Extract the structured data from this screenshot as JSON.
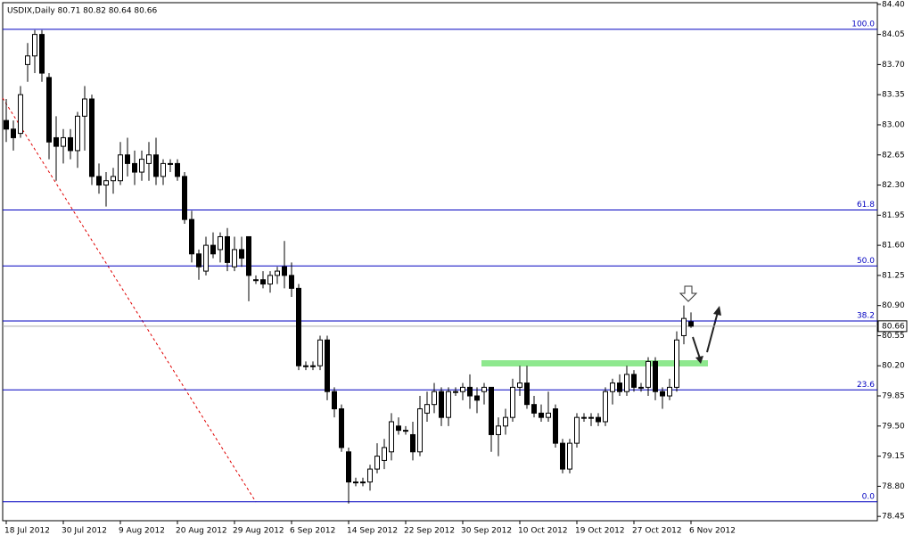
{
  "chart_data": {
    "type": "candlestick",
    "title": "USDIX,Daily  80.71 80.82 80.64 80.66",
    "categories": [
      "18 Jul 2012",
      null,
      null,
      null,
      null,
      null,
      null,
      null,
      "30 Jul 2012",
      null,
      null,
      null,
      null,
      null,
      null,
      null,
      "9 Aug 2012",
      null,
      null,
      null,
      null,
      null,
      null,
      null,
      "20 Aug 2012",
      null,
      null,
      null,
      null,
      null,
      null,
      null,
      "29 Aug 2012",
      null,
      null,
      null,
      null,
      null,
      null,
      null,
      "6 Sep 2012",
      null,
      null,
      null,
      null,
      null,
      null,
      null,
      "14 Sep 2012",
      null,
      null,
      null,
      null,
      null,
      null,
      null,
      "22 Sep 2012",
      null,
      null,
      null,
      null,
      null,
      null,
      null,
      "30 Sep 2012",
      null,
      null,
      null,
      null,
      null,
      null,
      null,
      "10 Oct 2012",
      null,
      null,
      null,
      null,
      null,
      null,
      null,
      "19 Oct 2012",
      null,
      null,
      null,
      null,
      null,
      null,
      null,
      "27 Oct 2012",
      null,
      null,
      null,
      null,
      null,
      null,
      null,
      "6 Nov 2012"
    ],
    "open": [
      83.05,
      82.95,
      82.9,
      83.7,
      83.8,
      84.05,
      83.55,
      82.85,
      82.75,
      82.85,
      82.7,
      83.1,
      83.3,
      82.4,
      82.3,
      82.35,
      82.35,
      82.65,
      82.55,
      82.45,
      82.55,
      82.65,
      82.4,
      82.55,
      82.55,
      82.4,
      81.9,
      81.5,
      81.3,
      81.6,
      81.55,
      81.7,
      81.35,
      81.55,
      81.7,
      81.2,
      81.2,
      81.15,
      81.25,
      81.35,
      81.25,
      81.1,
      80.2,
      80.2,
      80.2,
      80.5,
      79.9,
      79.7,
      79.2,
      78.85,
      78.85,
      78.85,
      79.0,
      79.1,
      79.2,
      79.5,
      79.45,
      79.4,
      79.2,
      79.65,
      79.75,
      79.9,
      79.6,
      79.9,
      79.9,
      79.95,
      79.85,
      79.9,
      79.95,
      79.4,
      79.5,
      79.6,
      79.95,
      80.0,
      79.75,
      79.65,
      79.6,
      79.7,
      79.3,
      79.0,
      79.3,
      79.6,
      79.6,
      79.6,
      79.55,
      79.9,
      80.0,
      79.9,
      80.1,
      79.95,
      79.95,
      80.25,
      79.9,
      79.85,
      79.95,
      80.55,
      80.71
    ],
    "high": [
      83.3,
      83.05,
      83.45,
      83.95,
      84.1,
      84.1,
      83.6,
      83.1,
      82.95,
      82.95,
      83.15,
      83.45,
      83.35,
      82.55,
      82.45,
      82.5,
      82.8,
      82.85,
      82.7,
      82.7,
      82.8,
      82.85,
      82.6,
      82.6,
      82.6,
      82.45,
      82.0,
      81.55,
      81.7,
      81.75,
      81.75,
      81.8,
      81.7,
      81.7,
      81.7,
      81.25,
      81.3,
      81.3,
      81.35,
      81.65,
      81.4,
      81.15,
      80.25,
      80.25,
      80.55,
      80.55,
      79.95,
      79.75,
      79.25,
      78.9,
      78.9,
      79.05,
      79.3,
      79.35,
      79.65,
      79.6,
      79.5,
      79.55,
      79.85,
      79.9,
      80.0,
      79.95,
      79.95,
      79.95,
      80.0,
      80.1,
      79.95,
      80.0,
      79.95,
      79.6,
      79.7,
      80.05,
      80.2,
      80.2,
      79.85,
      79.75,
      79.9,
      79.75,
      79.35,
      79.35,
      79.65,
      79.65,
      79.65,
      79.65,
      79.95,
      80.05,
      80.1,
      80.2,
      80.15,
      80.0,
      80.3,
      80.3,
      79.95,
      80.05,
      80.6,
      80.9,
      80.82
    ],
    "low": [
      82.8,
      82.7,
      82.85,
      83.5,
      83.6,
      83.5,
      82.6,
      82.35,
      82.55,
      82.6,
      82.5,
      82.7,
      82.3,
      82.2,
      82.05,
      82.2,
      82.3,
      82.4,
      82.3,
      82.35,
      82.35,
      82.3,
      82.3,
      82.45,
      82.35,
      81.85,
      81.4,
      81.2,
      81.25,
      81.45,
      81.4,
      81.3,
      81.3,
      81.35,
      80.95,
      81.15,
      81.1,
      81.05,
      81.15,
      81.1,
      81.0,
      80.15,
      80.15,
      80.15,
      80.15,
      79.8,
      79.6,
      79.2,
      78.6,
      78.8,
      78.8,
      78.75,
      78.95,
      79.0,
      79.1,
      79.4,
      79.4,
      79.1,
      79.15,
      79.55,
      79.65,
      79.5,
      79.5,
      79.85,
      79.8,
      79.7,
      79.65,
      79.75,
      79.2,
      79.15,
      79.4,
      79.55,
      79.85,
      79.7,
      79.6,
      79.55,
      79.55,
      79.25,
      78.95,
      78.95,
      79.25,
      79.55,
      79.5,
      79.5,
      79.5,
      79.75,
      79.85,
      79.85,
      79.9,
      79.9,
      79.85,
      79.8,
      79.7,
      79.8,
      79.9,
      80.45,
      80.64
    ],
    "close": [
      82.95,
      82.85,
      83.35,
      83.8,
      84.05,
      83.6,
      82.8,
      82.75,
      82.85,
      82.7,
      83.1,
      83.3,
      82.4,
      82.3,
      82.35,
      82.4,
      82.65,
      82.55,
      82.45,
      82.6,
      82.65,
      82.4,
      82.55,
      82.55,
      82.4,
      81.9,
      81.5,
      81.35,
      81.6,
      81.5,
      81.7,
      81.4,
      81.55,
      81.45,
      81.25,
      81.2,
      81.15,
      81.25,
      81.3,
      81.25,
      81.1,
      80.2,
      80.2,
      80.2,
      80.5,
      79.9,
      79.7,
      79.25,
      78.85,
      78.85,
      78.85,
      79.0,
      79.15,
      79.25,
      79.55,
      79.45,
      79.45,
      79.2,
      79.7,
      79.75,
      79.9,
      79.6,
      79.9,
      79.9,
      79.95,
      79.85,
      79.8,
      79.95,
      79.4,
      79.5,
      79.6,
      79.95,
      80.0,
      79.75,
      79.65,
      79.6,
      79.65,
      79.3,
      79.0,
      79.3,
      79.6,
      79.6,
      79.6,
      79.55,
      79.9,
      80.0,
      79.9,
      80.1,
      79.95,
      79.95,
      80.25,
      79.9,
      79.85,
      79.95,
      80.5,
      80.75,
      80.66
    ],
    "up_color": "#ffffff",
    "down_color": "#000000",
    "ylim": [
      78.4,
      84.45
    ],
    "yticks": [
      {
        "value": 84.4,
        "label": "84.40"
      },
      {
        "value": 84.05,
        "label": "84.05"
      },
      {
        "value": 83.7,
        "label": "83.70"
      },
      {
        "value": 83.35,
        "label": "83.35"
      },
      {
        "value": 83.0,
        "label": "83.00"
      },
      {
        "value": 82.65,
        "label": "82.65"
      },
      {
        "value": 82.3,
        "label": "82.30"
      },
      {
        "value": 81.95,
        "label": "81.95"
      },
      {
        "value": 81.6,
        "label": "81.60"
      },
      {
        "value": 81.25,
        "label": "81.25"
      },
      {
        "value": 80.9,
        "label": "80.90"
      },
      {
        "value": 80.55,
        "label": "80.55"
      },
      {
        "value": 80.2,
        "label": "80.20"
      },
      {
        "value": 79.85,
        "label": "79.85"
      },
      {
        "value": 79.5,
        "label": "79.50"
      },
      {
        "value": 79.15,
        "label": "79.15"
      },
      {
        "value": 78.8,
        "label": "78.80"
      },
      {
        "value": 78.45,
        "label": "78.45"
      }
    ],
    "fib_levels": [
      {
        "label": "100.0",
        "value": 84.11
      },
      {
        "label": "61.8",
        "value": 82.01
      },
      {
        "label": "50.0",
        "value": 81.36
      },
      {
        "label": "38.2",
        "value": 80.72
      },
      {
        "label": "23.6",
        "value": 79.92
      },
      {
        "label": "0.0",
        "value": 78.62
      }
    ],
    "fib_color": "#0000c0",
    "current_price": 80.66
  }
}
